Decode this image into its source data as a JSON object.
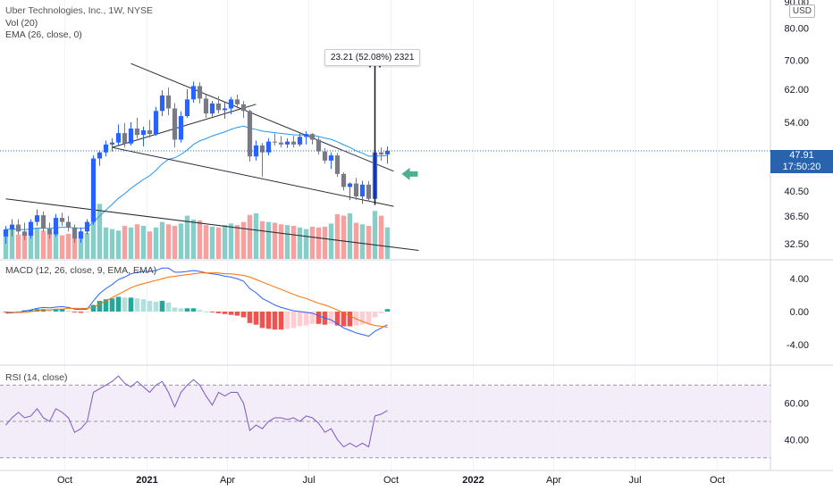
{
  "header": {
    "title": "Uber Technologies, Inc., 1W, NYSE",
    "vol_label": "Vol (20)",
    "ema_label": "EMA (26, close, 0)",
    "macd_label": "MACD (12, 26, close, 9, EMA, EMA)",
    "rsi_label": "RSI (14, close)",
    "currency": "USD"
  },
  "price_tag": {
    "price": "47.91",
    "countdown": "17:50:20"
  },
  "annotation": {
    "text": "23.21 (52.08%) 2321"
  },
  "colors": {
    "up": "#26a69a",
    "down": "#ef5350",
    "up_candle": "#2962ff",
    "down_candle": "#787b86",
    "ema": "#2196f3",
    "macd": "#2962ff",
    "signal": "#ff6d00",
    "rsi": "#7e57c2",
    "arrow": "#4caf8f"
  },
  "chart_data": [
    {
      "type": "candlestick",
      "name": "price",
      "ylim": [
        30.5,
        90
      ],
      "yticks": [
        "90.00",
        "80.00",
        "70.00",
        "62.00",
        "54.00",
        "40.50",
        "36.50",
        "32.50"
      ],
      "xticks": [
        "Oct",
        "2021",
        "Apr",
        "Jul",
        "Oct",
        "2022",
        "Apr",
        "Jul",
        "Oct"
      ],
      "weeks_start": "2020-07-27",
      "candles": [
        [
          33.5,
          35.0,
          32.5,
          34.5
        ],
        [
          34.5,
          36.0,
          33.5,
          35.2
        ],
        [
          35.2,
          36.0,
          33.8,
          34.2
        ],
        [
          34.2,
          35.5,
          33.0,
          33.6
        ],
        [
          33.6,
          36.0,
          33.2,
          35.6
        ],
        [
          35.6,
          37.5,
          35.0,
          36.6
        ],
        [
          36.6,
          37.2,
          34.2,
          34.6
        ],
        [
          34.6,
          35.5,
          33.2,
          33.8
        ],
        [
          33.8,
          36.8,
          33.5,
          36.2
        ],
        [
          36.2,
          37.0,
          35.0,
          35.6
        ],
        [
          35.6,
          36.5,
          34.2,
          34.8
        ],
        [
          34.8,
          35.2,
          32.6,
          33.2
        ],
        [
          33.2,
          34.8,
          32.6,
          34.2
        ],
        [
          34.2,
          36.0,
          33.8,
          35.6
        ],
        [
          35.6,
          47.0,
          35.2,
          46.4
        ],
        [
          46.4,
          48.0,
          45.0,
          47.6
        ],
        [
          47.6,
          50.0,
          46.8,
          49.2
        ],
        [
          49.2,
          50.5,
          47.8,
          49.6
        ],
        [
          49.6,
          53.5,
          49.0,
          51.6
        ],
        [
          51.6,
          53.8,
          48.6,
          49.4
        ],
        [
          49.4,
          54.0,
          49.0,
          52.6
        ],
        [
          52.6,
          55.0,
          50.4,
          51.2
        ],
        [
          51.2,
          53.0,
          48.8,
          52.2
        ],
        [
          52.2,
          54.5,
          50.6,
          51.4
        ],
        [
          51.4,
          57.6,
          51.0,
          56.6
        ],
        [
          56.6,
          61.7,
          55.4,
          60.4
        ],
        [
          60.4,
          62.4,
          55.6,
          57.2
        ],
        [
          57.2,
          58.5,
          48.6,
          50.2
        ],
        [
          50.2,
          56.5,
          49.6,
          55.4
        ],
        [
          55.4,
          62.0,
          55.0,
          59.4
        ],
        [
          59.4,
          64.0,
          58.6,
          62.8
        ],
        [
          62.8,
          63.8,
          58.4,
          59.6
        ],
        [
          59.6,
          60.5,
          55.0,
          56.0
        ],
        [
          56.0,
          59.0,
          55.3,
          58.4
        ],
        [
          58.4,
          60.2,
          56.0,
          56.8
        ],
        [
          56.8,
          58.7,
          54.8,
          57.2
        ],
        [
          57.2,
          60.0,
          55.8,
          59.4
        ],
        [
          59.4,
          60.6,
          57.2,
          58.2
        ],
        [
          58.2,
          59.0,
          55.0,
          56.6
        ],
        [
          56.6,
          56.9,
          45.8,
          46.8
        ],
        [
          46.8,
          50.0,
          46.0,
          49.0
        ],
        [
          49.0,
          49.5,
          43.0,
          47.6
        ],
        [
          47.6,
          50.5,
          47.0,
          49.8
        ],
        [
          49.8,
          51.5,
          49.0,
          49.6
        ],
        [
          49.6,
          51.0,
          48.6,
          49.2
        ],
        [
          49.2,
          50.5,
          48.5,
          49.8
        ],
        [
          49.8,
          51.0,
          48.6,
          49.2
        ],
        [
          49.2,
          51.8,
          48.8,
          50.8
        ],
        [
          50.8,
          52.0,
          49.2,
          51.4
        ],
        [
          51.4,
          51.6,
          49.2,
          50.2
        ],
        [
          50.2,
          50.8,
          47.2,
          47.8
        ],
        [
          47.8,
          48.5,
          45.4,
          46.0
        ],
        [
          46.0,
          47.6,
          44.4,
          47.0
        ],
        [
          47.0,
          47.5,
          43.0,
          43.5
        ],
        [
          43.5,
          43.8,
          40.6,
          41.2
        ],
        [
          41.2,
          42.0,
          39.0,
          41.8
        ],
        [
          41.8,
          42.8,
          39.0,
          39.6
        ],
        [
          39.6,
          42.3,
          38.4,
          41.6
        ],
        [
          41.6,
          42.2,
          38.8,
          39.2
        ],
        [
          39.2,
          48.2,
          38.2,
          47.6
        ],
        [
          47.6,
          48.6,
          46.0,
          47.2
        ],
        [
          47.2,
          48.8,
          45.4,
          47.91
        ]
      ],
      "lines": [
        {
          "name": "upper-trendline",
          "from": [
            "2020-12-14",
            69.0
          ],
          "to": [
            "2021-10-04",
            44.0
          ]
        },
        {
          "name": "lower-trendline",
          "from": [
            "2020-11-23",
            48.6
          ],
          "to": [
            "2021-10-04",
            38.0
          ]
        },
        {
          "name": "channel-line",
          "from": [
            "2020-11-23",
            48.6
          ],
          "to": [
            "2021-05-03",
            58.2
          ]
        },
        {
          "name": "long-trendline",
          "from": [
            "2020-07-27",
            39.2
          ],
          "to": [
            "2021-11-01",
            31.6
          ]
        }
      ],
      "arrow": {
        "x": "2021-09-13",
        "from": 38.2,
        "to": 70.5
      },
      "marker": {
        "x": "2021-10-11",
        "y": 43.5
      }
    },
    {
      "type": "bar",
      "name": "volume",
      "values": [
        37,
        38,
        31,
        34,
        35,
        39,
        36,
        33,
        35,
        30,
        32,
        30,
        35,
        33,
        60,
        70,
        40,
        38,
        36,
        42,
        40,
        44,
        42,
        35,
        40,
        47,
        44,
        42,
        45,
        55,
        50,
        49,
        43,
        41,
        40,
        43,
        45,
        43,
        47,
        56,
        58,
        48,
        47,
        46,
        44,
        43,
        42,
        40,
        38,
        41,
        40,
        41,
        45,
        57,
        55,
        58,
        46,
        44,
        42,
        61,
        55,
        40
      ],
      "ylim": [
        0,
        140
      ]
    },
    {
      "type": "line",
      "name": "macd",
      "ylim": [
        -6.2,
        6.2
      ],
      "yticks": [
        "4.00",
        "0.00",
        "-4.00"
      ],
      "macd": [
        -0.2,
        -0.15,
        -0.1,
        0.05,
        0.2,
        0.4,
        0.5,
        0.45,
        0.55,
        0.6,
        0.5,
        0.3,
        0.25,
        0.3,
        1.3,
        2.2,
        2.8,
        3.3,
        3.9,
        4.2,
        4.6,
        4.8,
        4.9,
        4.9,
        5.0,
        5.3,
        5.3,
        4.8,
        4.8,
        4.9,
        5.0,
        4.9,
        4.7,
        4.6,
        4.5,
        4.3,
        4.2,
        4.0,
        3.7,
        2.8,
        2.3,
        1.6,
        1.2,
        0.8,
        0.5,
        0.3,
        0.1,
        0.0,
        -0.1,
        -0.2,
        -0.5,
        -0.8,
        -1.0,
        -1.5,
        -2.0,
        -2.3,
        -2.6,
        -2.8,
        -3.0,
        -2.4,
        -2.0,
        -1.6
      ],
      "signal": [
        -0.1,
        -0.1,
        -0.1,
        -0.1,
        0.0,
        0.1,
        0.2,
        0.2,
        0.3,
        0.3,
        0.4,
        0.4,
        0.4,
        0.4,
        0.5,
        0.9,
        1.3,
        1.7,
        2.1,
        2.5,
        2.9,
        3.2,
        3.4,
        3.6,
        3.8,
        4.0,
        4.2,
        4.3,
        4.4,
        4.5,
        4.6,
        4.7,
        4.7,
        4.7,
        4.7,
        4.6,
        4.6,
        4.5,
        4.4,
        4.2,
        3.9,
        3.6,
        3.3,
        3.0,
        2.7,
        2.4,
        2.1,
        1.8,
        1.6,
        1.3,
        1.0,
        0.8,
        0.5,
        0.2,
        -0.2,
        -0.5,
        -0.9,
        -1.2,
        -1.5,
        -1.7,
        -1.8,
        -1.9
      ],
      "hist": [
        -0.1,
        -0.05,
        0.0,
        0.15,
        0.2,
        0.3,
        0.3,
        0.25,
        0.25,
        0.3,
        0.1,
        -0.1,
        -0.15,
        -0.1,
        0.8,
        1.3,
        1.5,
        1.6,
        1.8,
        1.7,
        1.7,
        1.6,
        1.5,
        1.3,
        1.2,
        1.3,
        1.1,
        0.5,
        0.4,
        0.4,
        0.4,
        0.2,
        0.0,
        -0.1,
        -0.2,
        -0.3,
        -0.4,
        -0.5,
        -0.7,
        -1.4,
        -1.6,
        -2.0,
        -2.1,
        -2.2,
        -2.2,
        -2.1,
        -2.0,
        -1.8,
        -1.7,
        -1.5,
        -1.5,
        -1.6,
        -1.5,
        -1.7,
        -1.8,
        -1.8,
        -1.7,
        -1.6,
        -1.5,
        -0.7,
        -0.2,
        0.3
      ]
    },
    {
      "type": "line",
      "name": "rsi",
      "ylim": [
        23,
        80
      ],
      "yticks": [
        "60.00",
        "40.00"
      ],
      "band": [
        30,
        70
      ],
      "values": [
        48,
        52,
        55,
        52,
        53,
        57,
        52,
        50,
        57,
        55,
        52,
        44,
        46,
        50,
        66,
        68,
        70,
        72,
        75,
        71,
        69,
        72,
        69,
        66,
        70,
        72,
        66,
        58,
        66,
        70,
        73,
        70,
        64,
        59,
        66,
        64,
        66,
        66,
        60,
        45,
        48,
        46,
        50,
        52,
        52,
        51,
        52,
        50,
        53,
        52,
        49,
        44,
        46,
        40,
        36,
        38,
        36,
        38,
        36,
        53,
        54,
        56
      ]
    }
  ]
}
